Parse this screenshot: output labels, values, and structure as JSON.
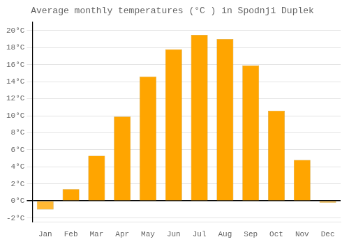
{
  "chart_data": {
    "type": "bar",
    "title": "Average monthly temperatures (°C ) in Spodnji Duplek",
    "categories": [
      "Jan",
      "Feb",
      "Mar",
      "Apr",
      "May",
      "Jun",
      "Jul",
      "Aug",
      "Sep",
      "Oct",
      "Nov",
      "Dec"
    ],
    "values": [
      -1.0,
      1.4,
      5.3,
      9.9,
      14.6,
      17.8,
      19.5,
      19.0,
      15.9,
      10.6,
      4.8,
      -0.2
    ],
    "colors": [
      "#FFB833",
      "#FFA500",
      "#FFA500",
      "#FFA500",
      "#FFA500",
      "#FFA500",
      "#FFA500",
      "#FFA500",
      "#FFA500",
      "#FFA500",
      "#FFA500",
      "#FFB833"
    ],
    "ylim": [
      -2.5,
      21.0
    ],
    "yticks": [
      {
        "value": -2,
        "label": "-2°C"
      },
      {
        "value": 0,
        "label": "0°C"
      },
      {
        "value": 2,
        "label": "2°C"
      },
      {
        "value": 4,
        "label": "4°C"
      },
      {
        "value": 6,
        "label": "6°C"
      },
      {
        "value": 8,
        "label": "8°C"
      },
      {
        "value": 10,
        "label": "10°C"
      },
      {
        "value": 12,
        "label": "12°C"
      },
      {
        "value": 14,
        "label": "14°C"
      },
      {
        "value": 16,
        "label": "16°C"
      },
      {
        "value": 18,
        "label": "18°C"
      },
      {
        "value": 20,
        "label": "20°C"
      }
    ],
    "grid": true
  }
}
